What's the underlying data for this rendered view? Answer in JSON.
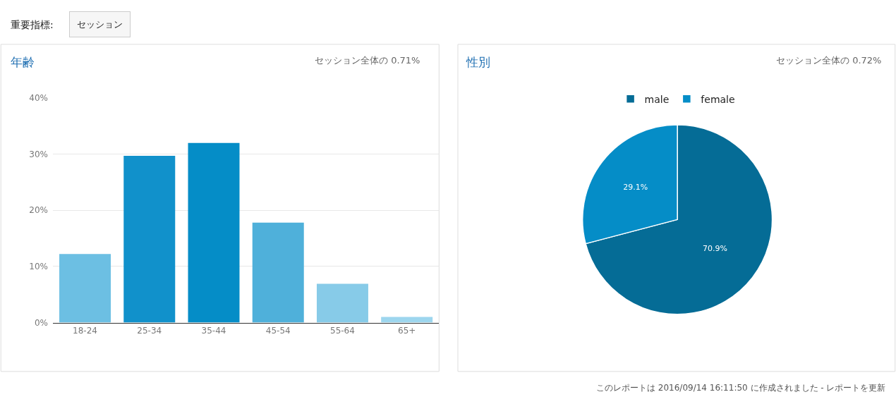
{
  "chart_data": [
    {
      "type": "bar",
      "title": "年齢",
      "subtitle": "セッション全体の 0.71%",
      "annotations": [
        "重要指標:",
        "セッション"
      ],
      "categories": [
        "18-24",
        "25-34",
        "35-44",
        "45-54",
        "55-64",
        "65+"
      ],
      "values": [
        12.2,
        29.7,
        32.0,
        17.8,
        6.9,
        1.0
      ],
      "colors": [
        "#6cbfe3",
        "#1191cb",
        "#058dc7",
        "#4fb0da",
        "#87cbe8",
        "#9dd6ee"
      ],
      "ylim": [
        0,
        40
      ],
      "yticks": [
        {
          "value": 0,
          "label": "0%"
        },
        {
          "value": 10,
          "label": "10%"
        },
        {
          "value": 20,
          "label": "20%"
        },
        {
          "value": 30,
          "label": "30%"
        },
        {
          "value": 40,
          "label": "40%"
        }
      ],
      "grid": "y"
    },
    {
      "type": "pie",
      "title": "性別",
      "subtitle": "セッション全体の 0.72%",
      "annotations": [
        "このレポートは 2016/09/14 16:11:50 に作成されました - レポートを更新"
      ],
      "categories": [
        "male",
        "female"
      ],
      "values": [
        70.9,
        29.1
      ],
      "value_labels": [
        "70.9%",
        "29.1%"
      ],
      "colors": [
        "#056c96",
        "#058dc7"
      ],
      "legend": "top"
    }
  ]
}
